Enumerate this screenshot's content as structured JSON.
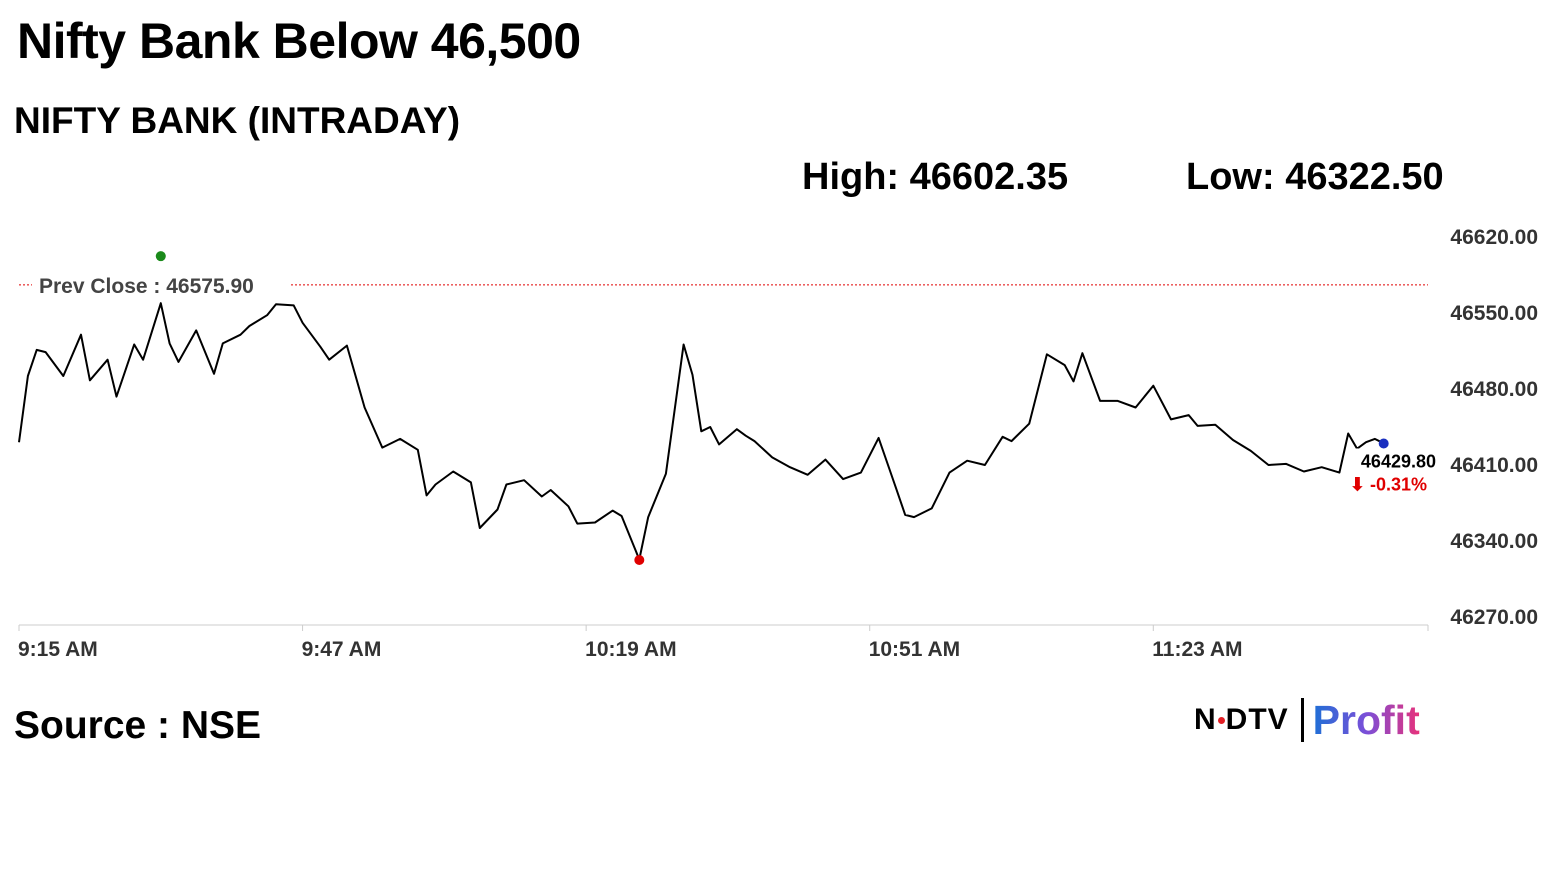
{
  "header": {
    "title": "Nifty Bank Below 46,500",
    "subtitle": "NIFTY BANK (INTRADAY)",
    "high_label": "High: 46602.35",
    "low_label": "Low: 46322.50"
  },
  "footer": {
    "source": "Source : NSE",
    "logo_ndtv": "NDTV",
    "logo_profit": "Profit"
  },
  "colors": {
    "line": "#000000",
    "prev_close": "#e00000",
    "high_marker": "#1a8a1a",
    "low_marker": "#e00000",
    "last_marker": "#1a2fbf",
    "axis": "#cccccc"
  },
  "chart_data": {
    "type": "line",
    "title": "NIFTY BANK (INTRADAY)",
    "xlabel": "",
    "ylabel": "",
    "ylim": [
      46270,
      46620
    ],
    "xlim": [
      "9:15 AM",
      "11:54 AM"
    ],
    "y_ticks": [
      "46620.00",
      "46550.00",
      "46480.00",
      "46410.00",
      "46340.00",
      "46270.00"
    ],
    "x_ticks": [
      "9:15 AM",
      "9:47 AM",
      "10:19 AM",
      "10:51 AM",
      "11:23 AM"
    ],
    "prev_close": 46575.9,
    "prev_close_label": "Prev Close : 46575.90",
    "high": 46602.35,
    "low": 46322.5,
    "last": 46429.8,
    "last_label": "46429.80",
    "change_label": "⬇ -0.31%",
    "grid": false,
    "series": [
      {
        "x": [
          "9:15",
          "9:16",
          "9:17",
          "9:18",
          "9:20",
          "9:22",
          "9:23",
          "9:25",
          "9:26",
          "9:28",
          "9:29",
          "9:31",
          "9:32",
          "9:33",
          "9:35",
          "9:37",
          "9:38",
          "9:40",
          "9:41",
          "9:43",
          "9:44",
          "9:46",
          "9:47",
          "9:49",
          "9:50",
          "9:52",
          "9:54",
          "9:56",
          "9:58",
          "10:00",
          "10:01",
          "10:02",
          "10:04",
          "10:06",
          "10:07",
          "10:09",
          "10:10",
          "10:12",
          "10:14",
          "10:15",
          "10:17",
          "10:18",
          "10:20",
          "10:22",
          "10:23",
          "10:25",
          "10:26",
          "10:28",
          "10:30",
          "10:31",
          "10:32",
          "10:33",
          "10:34",
          "10:36",
          "10:37",
          "10:38",
          "10:40",
          "10:42",
          "10:44",
          "10:46",
          "10:48",
          "10:50",
          "10:52",
          "10:54",
          "10:55",
          "10:56",
          "10:58",
          "11:00",
          "11:02",
          "11:04",
          "11:06",
          "11:07",
          "11:09",
          "11:11",
          "11:13",
          "11:14",
          "11:15",
          "11:17",
          "11:19",
          "11:21",
          "11:23",
          "11:25",
          "11:27",
          "11:28",
          "11:30",
          "11:32",
          "11:34",
          "11:36",
          "11:38",
          "11:40",
          "11:42",
          "11:44",
          "11:45",
          "11:46",
          "11:47",
          "11:48",
          "11:49"
        ],
        "y": [
          46431,
          46492,
          46516,
          46514,
          46492,
          46530,
          46488,
          46507,
          46473,
          46521,
          46507,
          46559,
          46522,
          46505,
          46534,
          46494,
          46522,
          46530,
          46538,
          46548,
          46558,
          46557,
          46541,
          46519,
          46507,
          46520,
          46463,
          46426,
          46434,
          46424,
          46382,
          46392,
          46404,
          46394,
          46352,
          46369,
          46392,
          46396,
          46381,
          46387,
          46372,
          46356,
          46357,
          46368,
          46363,
          46323,
          46362,
          46402,
          46521,
          46493,
          46441,
          46445,
          46429,
          46443,
          46437,
          46432,
          46417,
          46408,
          46401,
          46415,
          46397,
          46403,
          46435,
          46388,
          46364,
          46362,
          46370,
          46403,
          46414,
          46410,
          46436,
          46432,
          46448,
          46512,
          46502,
          46487,
          46513,
          46469,
          46469,
          46463,
          46483,
          46452,
          46456,
          46446,
          46447,
          46433,
          46423,
          46410,
          46411,
          46404,
          46408,
          46403,
          46439,
          46425,
          46431,
          46434,
          46430
        ]
      }
    ]
  }
}
